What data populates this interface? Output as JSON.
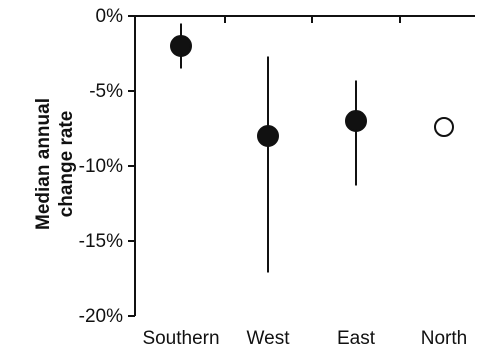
{
  "chart_data": {
    "type": "scatter",
    "title": "",
    "ylabel": "Median annual change rate",
    "ylabel_lines": [
      "Median annual",
      "change rate"
    ],
    "xlabel": "",
    "categories": [
      "Southern",
      "West",
      "East",
      "North"
    ],
    "y_ticks": [
      0,
      -5,
      -10,
      -15,
      -20
    ],
    "y_tick_labels": [
      "0%",
      "-5%",
      "-10%",
      "-15%",
      "-20%"
    ],
    "ylim": [
      -20,
      0
    ],
    "grid": false,
    "points": [
      {
        "category": "Southern",
        "value": -2.0,
        "lower": -3.5,
        "upper": -0.5,
        "filled": true
      },
      {
        "category": "West",
        "value": -8.0,
        "lower": -17.1,
        "upper": -2.7,
        "filled": true
      },
      {
        "category": "East",
        "value": -7.0,
        "lower": -11.3,
        "upper": -4.3,
        "filled": true
      },
      {
        "category": "North",
        "value": -7.4,
        "lower": null,
        "upper": null,
        "filled": false
      }
    ],
    "colors": {
      "marker": "#111111",
      "hollow_fill": "#ffffff",
      "axis": "#111111"
    }
  }
}
